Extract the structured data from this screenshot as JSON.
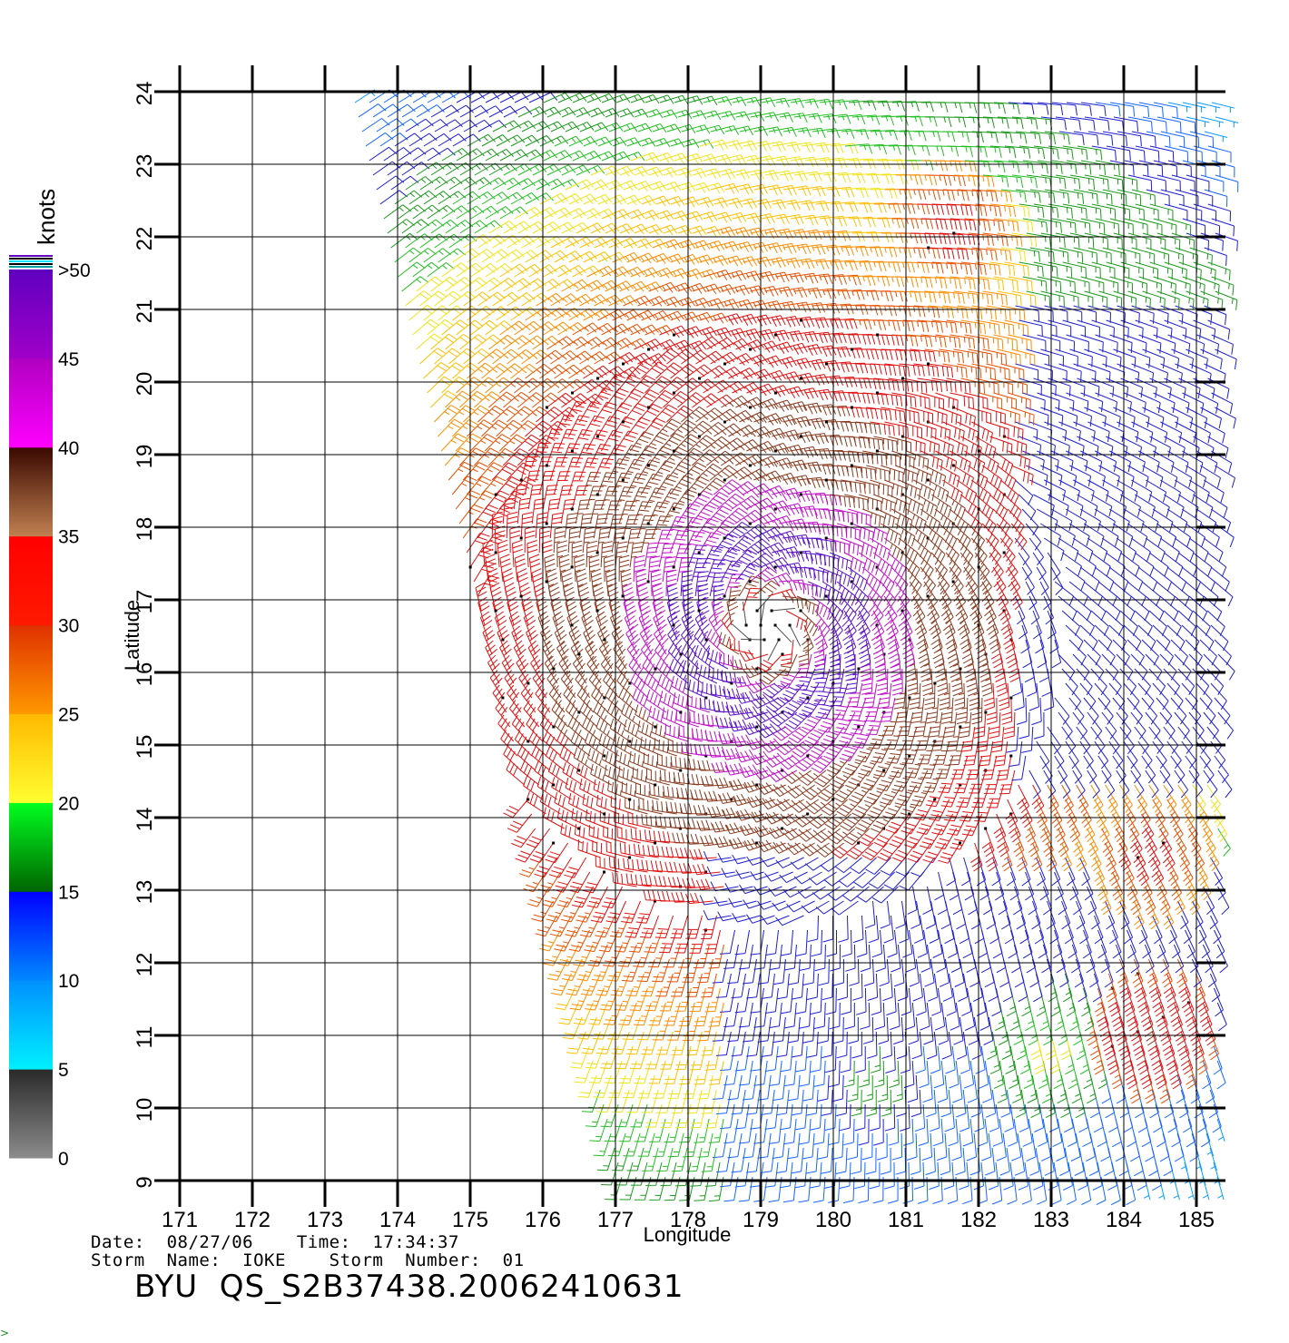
{
  "chart_data": {
    "type": "wind-barb map (scatterometer wind field)",
    "xlabel": "Longitude",
    "ylabel": "Latitude",
    "xlim": [
      171,
      185.4
    ],
    "ylim": [
      9,
      24
    ],
    "x_ticks": [
      "171",
      "172",
      "173",
      "174",
      "175",
      "176",
      "177",
      "178",
      "179",
      "180",
      "181",
      "182",
      "183",
      "184",
      "185"
    ],
    "y_ticks": [
      "9",
      "10",
      "11",
      "12",
      "13",
      "14",
      "15",
      "16",
      "17",
      "18",
      "19",
      "20",
      "21",
      "22",
      "23",
      "24"
    ],
    "grid": true,
    "colorbar": {
      "title": "knots",
      "labels": [
        "0",
        "5",
        "10",
        "15",
        "20",
        "25",
        "30",
        "35",
        "40",
        "45",
        ">50"
      ],
      "placement": "left",
      "bands": [
        {
          "from": 0,
          "to": 5,
          "colors": [
            "#8c8c8c",
            "#2a2a2a"
          ]
        },
        {
          "from": 5,
          "to": 10,
          "colors": [
            "#00f0ff",
            "#0090ff"
          ]
        },
        {
          "from": 10,
          "to": 15,
          "colors": [
            "#0088ff",
            "#0000ff"
          ]
        },
        {
          "from": 15,
          "to": 20,
          "colors": [
            "#006400",
            "#00ff20"
          ]
        },
        {
          "from": 20,
          "to": 25,
          "colors": [
            "#ffff30",
            "#ffb800"
          ]
        },
        {
          "from": 25,
          "to": 30,
          "colors": [
            "#ff9800",
            "#e03000"
          ]
        },
        {
          "from": 30,
          "to": 35,
          "colors": [
            "#ff1a00",
            "#ff0000"
          ]
        },
        {
          "from": 35,
          "to": 40,
          "colors": [
            "#c08050",
            "#3a0800"
          ]
        },
        {
          "from": 40,
          "to": 45,
          "colors": [
            "#ff00ff",
            "#b000c0"
          ]
        },
        {
          "from": 45,
          "to": 50,
          "colors": [
            "#a000c8",
            "#6000c0"
          ]
        }
      ]
    },
    "storm": {
      "center_lon": 179.1,
      "center_lat": 16.6
    },
    "swath": {
      "lat_min": 9,
      "lat_max": 23.9,
      "lon_west_at_lat24": 173.4,
      "lon_west_at_lat9": 177.1,
      "lon_east": 185.3
    },
    "speed_features": [
      {
        "lon": 181.4,
        "lat": 22.2,
        "speed": 33
      },
      {
        "lon": 184.3,
        "lat": 13.7,
        "speed": 33
      },
      {
        "lon": 184.4,
        "lat": 11.3,
        "speed": 36
      },
      {
        "lon": 183.0,
        "lat": 11.0,
        "speed": 22
      },
      {
        "lon": 180.6,
        "lat": 10.5,
        "speed": 18
      }
    ]
  },
  "footer": {
    "line1": "Date:  08/27/06    Time:  17:34:37",
    "line2": "Storm  Name:  IOKE    Storm  Number:  01",
    "title": "BYU  QS_S2B37438.20062410631"
  },
  "colors": {
    "grid": "#000000",
    "background": "#ffffff"
  }
}
